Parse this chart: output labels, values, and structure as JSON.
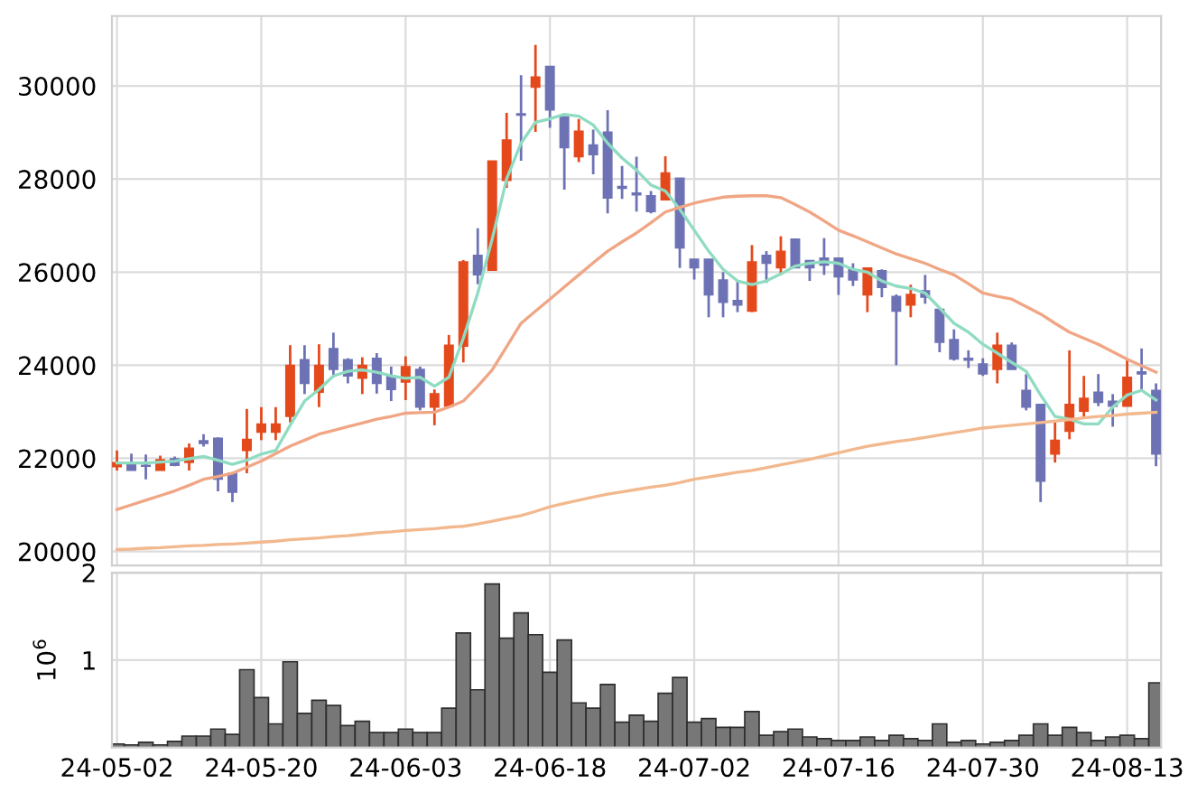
{
  "chart_data": [
    {
      "type": "candlestick",
      "tick_labels": "y",
      "grid": true,
      "categories": [
        null,
        null,
        null,
        null,
        null,
        null,
        null,
        null,
        null,
        null,
        null,
        null,
        null,
        null,
        null,
        null,
        null,
        null,
        null,
        null,
        null,
        null,
        null,
        null,
        null,
        null,
        null,
        null,
        null,
        null,
        null,
        null,
        null,
        null,
        null,
        null,
        null,
        null,
        null,
        null,
        null,
        null,
        null,
        null,
        null,
        null,
        null,
        null,
        null,
        null,
        null,
        null,
        null,
        null,
        null,
        null,
        null,
        null,
        null,
        null,
        null,
        null,
        null,
        null,
        null,
        null,
        null,
        null,
        null,
        null,
        null,
        null,
        null
      ],
      "ylim": [
        19700,
        31500
      ],
      "yticks": [
        20000,
        22000,
        24000,
        26000,
        28000,
        30000
      ],
      "ohlc": [
        [
          21820,
          22170,
          21740,
          21910
        ],
        [
          21910,
          22100,
          21740,
          21740
        ],
        [
          21850,
          22080,
          21550,
          21830
        ],
        [
          21740,
          22060,
          21740,
          21970
        ],
        [
          21990,
          22040,
          21830,
          21850
        ],
        [
          21910,
          22320,
          21740,
          22220
        ],
        [
          22380,
          22520,
          22250,
          22320
        ],
        [
          22430,
          22450,
          21290,
          21550
        ],
        [
          21680,
          21700,
          21060,
          21270
        ],
        [
          22170,
          23060,
          21680,
          22410
        ],
        [
          22560,
          23100,
          22390,
          22740
        ],
        [
          22560,
          23100,
          22390,
          22740
        ],
        [
          22900,
          24430,
          22770,
          24000
        ],
        [
          24120,
          24430,
          23380,
          23610
        ],
        [
          23420,
          24450,
          23100,
          24000
        ],
        [
          24360,
          24700,
          23740,
          23910
        ],
        [
          24120,
          24150,
          23610,
          23770
        ],
        [
          23720,
          24170,
          23380,
          24000
        ],
        [
          24150,
          24260,
          23390,
          23610
        ],
        [
          23770,
          23970,
          23230,
          23480
        ],
        [
          23640,
          24190,
          23250,
          23970
        ],
        [
          23910,
          23970,
          23030,
          23100
        ],
        [
          23100,
          23480,
          22710,
          23390
        ],
        [
          23120,
          24650,
          23120,
          24430
        ],
        [
          24410,
          26260,
          24060,
          26220
        ],
        [
          26360,
          26940,
          25740,
          25940
        ],
        [
          26040,
          28390,
          26040,
          28390
        ],
        [
          27970,
          29420,
          27810,
          28840
        ],
        [
          29400,
          30230,
          28390,
          29370
        ],
        [
          29970,
          30880,
          29010,
          30190
        ],
        [
          30420,
          30420,
          29100,
          29480
        ],
        [
          29340,
          29340,
          27770,
          28670
        ],
        [
          28480,
          29290,
          28360,
          29030
        ],
        [
          28730,
          29060,
          28100,
          28520
        ],
        [
          29010,
          29480,
          27260,
          27590
        ],
        [
          27840,
          28280,
          27570,
          27800
        ],
        [
          27700,
          28480,
          27300,
          27660
        ],
        [
          27640,
          27740,
          27260,
          27300
        ],
        [
          27550,
          28490,
          27550,
          28130
        ],
        [
          28020,
          28020,
          26090,
          26520
        ],
        [
          26280,
          26280,
          25840,
          26090
        ],
        [
          26280,
          26280,
          25030,
          25510
        ],
        [
          25830,
          26000,
          25030,
          25350
        ],
        [
          25390,
          25810,
          25140,
          25290
        ],
        [
          25160,
          26580,
          25140,
          26220
        ],
        [
          26360,
          26450,
          25770,
          26190
        ],
        [
          26090,
          26770,
          25940,
          26450
        ],
        [
          26710,
          26710,
          26090,
          26090
        ],
        [
          26250,
          26250,
          25810,
          26090
        ],
        [
          26300,
          26730,
          25940,
          26150
        ],
        [
          26300,
          26300,
          25510,
          25900
        ],
        [
          26050,
          26190,
          25700,
          25830
        ],
        [
          25510,
          26090,
          25140,
          26090
        ],
        [
          26030,
          26060,
          25460,
          25670
        ],
        [
          25480,
          25520,
          24000,
          25160
        ],
        [
          25290,
          25730,
          25030,
          25520
        ],
        [
          25600,
          25940,
          25320,
          25460
        ],
        [
          25200,
          25200,
          24280,
          24490
        ],
        [
          24550,
          24770,
          24100,
          24130
        ],
        [
          24150,
          24320,
          23940,
          24110
        ],
        [
          24030,
          24150,
          23770,
          23810
        ],
        [
          23910,
          24700,
          23610,
          24430
        ],
        [
          24430,
          24490,
          23910,
          23910
        ],
        [
          23460,
          23810,
          23030,
          23100
        ],
        [
          23160,
          23160,
          21060,
          21510
        ],
        [
          22090,
          22770,
          21910,
          22390
        ],
        [
          22580,
          24320,
          22410,
          23160
        ],
        [
          23010,
          23770,
          22880,
          23290
        ],
        [
          23420,
          23810,
          23120,
          23200
        ],
        [
          23230,
          23380,
          22680,
          23120
        ],
        [
          23120,
          24130,
          23120,
          23740
        ],
        [
          23860,
          24360,
          23480,
          23810
        ],
        [
          23460,
          23610,
          21830,
          22090
        ]
      ],
      "colors": [
        "#e4491c",
        "#6d72b4",
        "#6d72b4",
        "#e4491c",
        "#6d72b4",
        "#e4491c",
        "#6d72b4",
        "#6d72b4",
        "#6d72b4",
        "#e4491c",
        "#e4491c",
        "#e4491c",
        "#e4491c",
        "#6d72b4",
        "#e4491c",
        "#6d72b4",
        "#6d72b4",
        "#e4491c",
        "#6d72b4",
        "#6d72b4",
        "#e4491c",
        "#6d72b4",
        "#e4491c",
        "#e4491c",
        "#e4491c",
        "#6d72b4",
        "#e4491c",
        "#e4491c",
        "#6d72b4",
        "#e4491c",
        "#6d72b4",
        "#6d72b4",
        "#e4491c",
        "#6d72b4",
        "#6d72b4",
        "#6d72b4",
        "#6d72b4",
        "#6d72b4",
        "#e4491c",
        "#6d72b4",
        "#6d72b4",
        "#6d72b4",
        "#6d72b4",
        "#6d72b4",
        "#e4491c",
        "#6d72b4",
        "#e4491c",
        "#6d72b4",
        "#6d72b4",
        "#6d72b4",
        "#6d72b4",
        "#6d72b4",
        "#e4491c",
        "#6d72b4",
        "#6d72b4",
        "#e4491c",
        "#6d72b4",
        "#6d72b4",
        "#6d72b4",
        "#6d72b4",
        "#6d72b4",
        "#e4491c",
        "#6d72b4",
        "#6d72b4",
        "#6d72b4",
        "#e4491c",
        "#e4491c",
        "#e4491c",
        "#6d72b4",
        "#6d72b4",
        "#e4491c",
        "#6d72b4",
        "#6d72b4"
      ],
      "series": [
        {
          "type": "line",
          "color": "#8fdcc2",
          "values": [
            21900,
            21900,
            21900,
            21920,
            21940,
            21990,
            22040,
            21960,
            21870,
            21960,
            22090,
            22170,
            22710,
            23230,
            23480,
            23770,
            23870,
            23900,
            23850,
            23770,
            23720,
            23740,
            23550,
            23740,
            24580,
            25550,
            26710,
            28000,
            28770,
            29220,
            29290,
            29390,
            29350,
            29160,
            28770,
            28450,
            28190,
            27870,
            27740,
            27350,
            26900,
            26450,
            26060,
            25810,
            25730,
            25810,
            25960,
            26130,
            26190,
            26220,
            26190,
            26060,
            26000,
            25810,
            25700,
            25650,
            25550,
            25230,
            24900,
            24710,
            24450,
            24260,
            24060,
            23870,
            23360,
            22900,
            22840,
            22740,
            22740,
            23100,
            23360,
            23460,
            23250
          ]
        },
        {
          "type": "line",
          "color": "#f0a684",
          "values": [
            20900,
            21000,
            21100,
            21200,
            21300,
            21420,
            21550,
            21610,
            21680,
            21810,
            21940,
            22100,
            22260,
            22390,
            22520,
            22600,
            22680,
            22760,
            22840,
            22900,
            22970,
            22980,
            22990,
            23100,
            23230,
            23550,
            23900,
            24400,
            24900,
            25160,
            25420,
            25680,
            25940,
            26200,
            26450,
            26650,
            26840,
            27060,
            27290,
            27390,
            27480,
            27550,
            27610,
            27630,
            27640,
            27640,
            27600,
            27450,
            27290,
            27100,
            26900,
            26780,
            26650,
            26520,
            26390,
            26290,
            26190,
            26060,
            25940,
            25750,
            25550,
            25480,
            25420,
            25260,
            25100,
            24900,
            24710,
            24580,
            24450,
            24290,
            24130,
            23990,
            23850
          ]
        },
        {
          "type": "line",
          "color": "#f2b88e",
          "values": [
            20040,
            20050,
            20070,
            20080,
            20100,
            20120,
            20130,
            20150,
            20160,
            20180,
            20200,
            20220,
            20250,
            20270,
            20290,
            20320,
            20340,
            20370,
            20400,
            20420,
            20450,
            20470,
            20490,
            20520,
            20540,
            20590,
            20650,
            20710,
            20770,
            20860,
            20960,
            21030,
            21100,
            21170,
            21230,
            21280,
            21330,
            21380,
            21420,
            21480,
            21550,
            21600,
            21650,
            21700,
            21740,
            21800,
            21860,
            21920,
            21980,
            22050,
            22120,
            22190,
            22260,
            22310,
            22360,
            22400,
            22450,
            22500,
            22550,
            22600,
            22650,
            22680,
            22710,
            22740,
            22770,
            22800,
            22830,
            22870,
            22900,
            22920,
            22950,
            22970,
            22990
          ]
        }
      ]
    },
    {
      "type": "bar",
      "grid": true,
      "ylabel": "10$^{6}$",
      "color": "#777777",
      "categories": [
        "24-05-02",
        null,
        null,
        null,
        null,
        null,
        null,
        null,
        null,
        null,
        "24-05-20",
        null,
        null,
        null,
        null,
        null,
        null,
        null,
        null,
        null,
        "24-06-03",
        null,
        null,
        null,
        null,
        null,
        null,
        null,
        null,
        null,
        "24-06-18",
        null,
        null,
        null,
        null,
        null,
        null,
        null,
        null,
        null,
        "24-07-02",
        null,
        null,
        null,
        null,
        null,
        null,
        null,
        null,
        null,
        "24-07-16",
        null,
        null,
        null,
        null,
        null,
        null,
        null,
        null,
        null,
        "24-07-30",
        null,
        null,
        null,
        null,
        null,
        null,
        null,
        null,
        null,
        "24-08-13",
        null,
        null
      ],
      "ylim": [
        0,
        2
      ],
      "yticks": [
        1,
        2
      ],
      "values": [
        0.04,
        0.03,
        0.06,
        0.03,
        0.07,
        0.13,
        0.13,
        0.21,
        0.15,
        0.89,
        0.57,
        0.27,
        0.98,
        0.39,
        0.54,
        0.48,
        0.25,
        0.3,
        0.17,
        0.17,
        0.21,
        0.17,
        0.17,
        0.45,
        1.31,
        0.66,
        1.87,
        1.25,
        1.54,
        1.29,
        0.86,
        1.23,
        0.51,
        0.45,
        0.72,
        0.29,
        0.37,
        0.3,
        0.62,
        0.8,
        0.29,
        0.33,
        0.23,
        0.23,
        0.41,
        0.14,
        0.18,
        0.21,
        0.12,
        0.1,
        0.08,
        0.08,
        0.12,
        0.08,
        0.14,
        0.1,
        0.08,
        0.27,
        0.06,
        0.08,
        0.04,
        0.06,
        0.08,
        0.14,
        0.27,
        0.14,
        0.23,
        0.17,
        0.08,
        0.12,
        0.14,
        0.1,
        0.74
      ]
    }
  ]
}
